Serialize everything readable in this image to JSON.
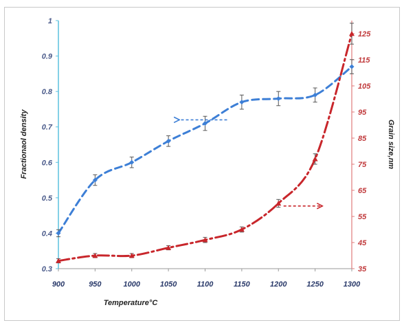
{
  "chart_data": {
    "type": "line",
    "xlabel": "Temperature°C",
    "ylabel_left": "Fractionaol density",
    "ylabel_right": "Grain size,nm",
    "x": [
      900,
      950,
      1000,
      1050,
      1100,
      1150,
      1200,
      1250,
      1300
    ],
    "xlim": [
      900,
      1300
    ],
    "ylim_left": [
      0.3,
      1.0
    ],
    "ylim_right": [
      35,
      130
    ],
    "x_ticks": [
      "900",
      "950",
      "1000",
      "1050",
      "1100",
      "1150",
      "1200",
      "1250",
      "1300"
    ],
    "y_left_ticks": [
      "0.3",
      "0.4",
      "0.5",
      "0.6",
      "0.7",
      "0.8",
      "0.9",
      "1"
    ],
    "y_right_ticks": [
      "35",
      "45",
      "55",
      "65",
      "75",
      "85",
      "95",
      "105",
      "115",
      "125"
    ],
    "series": [
      {
        "axis": "left",
        "color": "#3d7fd6",
        "marker": "diamond",
        "line_style": "dashed",
        "values": [
          0.4,
          0.55,
          0.6,
          0.66,
          0.71,
          0.77,
          0.78,
          0.79,
          0.87
        ],
        "errors": [
          0.01,
          0.015,
          0.015,
          0.015,
          0.02,
          0.02,
          0.02,
          0.02,
          0.02
        ]
      },
      {
        "axis": "right",
        "color": "#c8262b",
        "marker": "triangle",
        "line_style": "dash-dot",
        "values": [
          38,
          40,
          40,
          43,
          46,
          50,
          60,
          77,
          125
        ],
        "errors": [
          0.8,
          0.8,
          0.8,
          0.8,
          1.0,
          1.0,
          1.5,
          2.0,
          4.0
        ]
      }
    ],
    "annotations": [
      {
        "type": "arrow",
        "direction": "left",
        "color": "#3d7fd6",
        "from": [
          1130,
          0.72
        ],
        "to": [
          1065,
          0.72
        ],
        "axis": "left"
      },
      {
        "type": "arrow",
        "direction": "right",
        "color": "#c8262b",
        "from": [
          1207,
          59
        ],
        "to": [
          1260,
          59
        ],
        "axis": "right"
      }
    ]
  }
}
